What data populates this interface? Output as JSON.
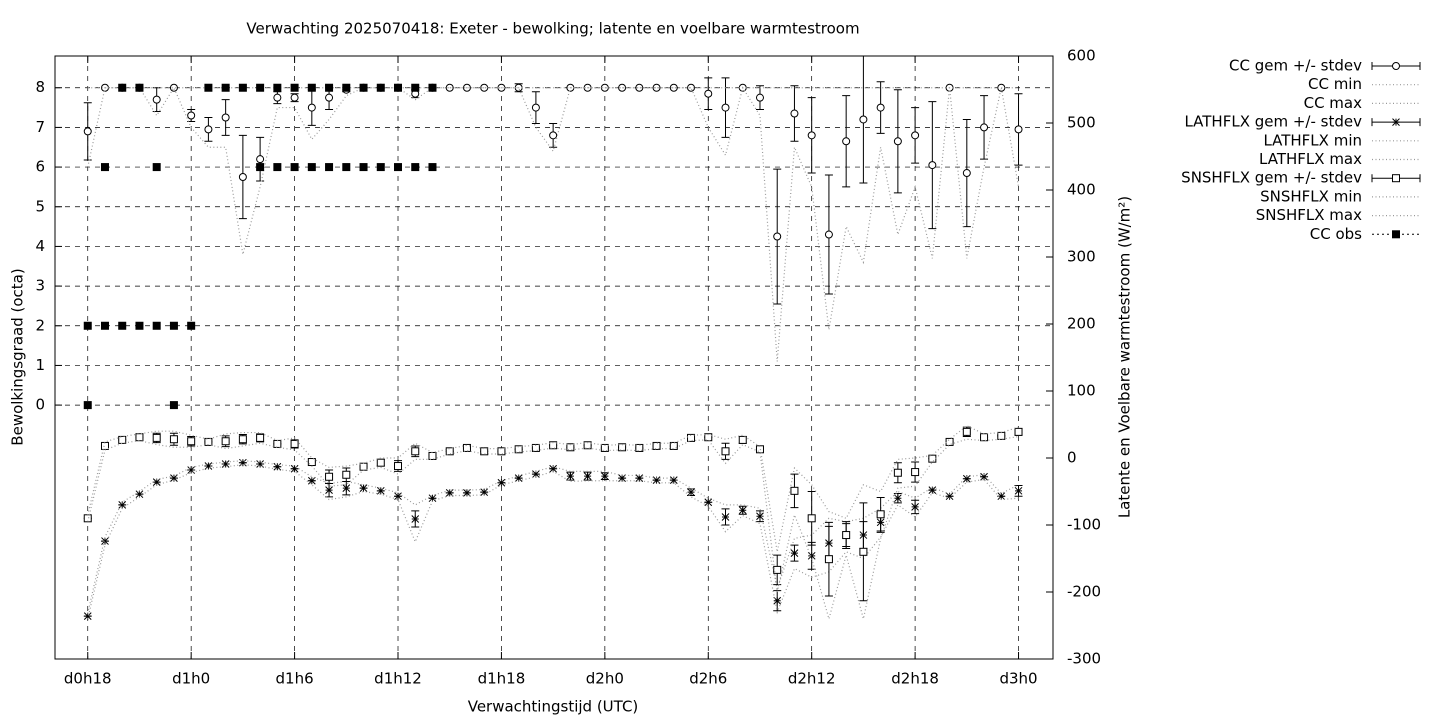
{
  "chart_data": {
    "type": "line",
    "title": "Verwachting 2025070418: Exeter - bewolking; latente en voelbare warmtestroom",
    "xlabel": "Verwachtingstijd (UTC)",
    "ylabel": "Bewolkingsgraad (octa)",
    "y2label": "Latente en Voelbare warmtestroom (W/m²)",
    "xlim": [
      16.1,
      74
    ],
    "xticks": [
      {
        "value": 18,
        "label": "d0h18"
      },
      {
        "value": 24,
        "label": "d1h0"
      },
      {
        "value": 30,
        "label": "d1h6"
      },
      {
        "value": 36,
        "label": "d1h12"
      },
      {
        "value": 42,
        "label": "d1h18"
      },
      {
        "value": 48,
        "label": "d2h0"
      },
      {
        "value": 54,
        "label": "d2h6"
      },
      {
        "value": 60,
        "label": "d2h12"
      },
      {
        "value": 66,
        "label": "d2h18"
      },
      {
        "value": 72,
        "label": "d3h0"
      }
    ],
    "ylim": [
      -6.4,
      8.8
    ],
    "yticks": [
      0,
      1,
      2,
      3,
      4,
      5,
      6,
      7,
      8
    ],
    "y2lim": [
      -300,
      600
    ],
    "y2ticks": [
      -300,
      -200,
      -100,
      0,
      100,
      200,
      300,
      400,
      500,
      600
    ],
    "grid": true,
    "legend": "outside-right-top",
    "x": [
      18,
      19,
      20,
      21,
      22,
      23,
      24,
      25,
      26,
      27,
      28,
      29,
      30,
      31,
      32,
      33,
      34,
      35,
      36,
      37,
      38,
      39,
      40,
      41,
      42,
      43,
      44,
      45,
      46,
      47,
      48,
      49,
      50,
      51,
      52,
      53,
      54,
      55,
      56,
      57,
      58,
      59,
      60,
      61,
      62,
      63,
      64,
      65,
      66,
      67,
      68,
      69,
      70,
      71,
      72
    ],
    "series": [
      {
        "name": "CC gem +/- stdev",
        "color": "#000000",
        "axis": "y",
        "marker": "circle",
        "values": [
          6.9,
          8,
          8,
          8,
          7.7,
          8,
          7.3,
          6.95,
          7.25,
          5.75,
          6.2,
          7.75,
          7.75,
          7.5,
          7.75,
          7.95,
          8,
          8,
          8,
          7.85,
          8,
          8,
          8,
          8,
          8,
          8,
          7.5,
          6.8,
          8,
          8,
          8,
          8,
          8,
          8,
          8,
          8,
          7.85,
          7.5,
          8,
          7.75,
          4.25,
          7.35,
          6.8,
          4.3,
          6.65,
          7.2,
          7.5,
          6.65,
          6.8,
          6.05,
          8,
          5.85,
          7.0,
          8,
          6.95
        ],
        "errors": [
          0.72,
          0,
          0,
          0,
          0.3,
          0,
          0.15,
          0.3,
          0.45,
          1.05,
          0.55,
          0.15,
          0.1,
          0.45,
          0.3,
          0.05,
          0,
          0,
          0,
          0.1,
          0,
          0,
          0,
          0,
          0,
          0.1,
          0.4,
          0.3,
          0,
          0,
          0,
          0,
          0,
          0,
          0,
          0,
          0.4,
          0.75,
          0,
          0.3,
          1.7,
          0.7,
          0.95,
          1.5,
          1.15,
          1.6,
          0.65,
          1.3,
          0.7,
          1.6,
          0,
          1.35,
          0.8,
          0,
          0.9
        ]
      },
      {
        "name": "CC min",
        "color": "#999999",
        "axis": "y",
        "marker": "none",
        "values": [
          6,
          8,
          8,
          8,
          7.3,
          8,
          7,
          6.5,
          6.5,
          3.8,
          5.5,
          7.5,
          7.5,
          6.7,
          7.2,
          7.8,
          8,
          8,
          8,
          7.7,
          8,
          8,
          8,
          8,
          8,
          8,
          7,
          6.4,
          8,
          8,
          8,
          8,
          8,
          8,
          8,
          8,
          7,
          6.3,
          8,
          7.3,
          1.1,
          6.5,
          5.5,
          1.9,
          4.5,
          3.6,
          6.5,
          4.3,
          5.5,
          3.7,
          8,
          3.7,
          6,
          8,
          5.5
        ]
      },
      {
        "name": "CC max",
        "color": "#999999",
        "axis": "y",
        "marker": "none",
        "values": [
          8,
          8,
          8,
          8,
          8,
          8,
          8,
          8,
          8,
          8,
          8,
          8,
          8,
          8,
          8,
          8,
          8,
          8,
          8,
          8,
          8,
          8,
          8,
          8,
          8,
          8,
          8,
          8,
          8,
          8,
          8,
          8,
          8,
          8,
          8,
          8,
          8,
          8,
          8,
          8,
          8,
          8,
          8,
          8,
          8,
          8,
          8,
          8,
          8,
          8,
          8,
          8,
          8,
          8,
          8
        ]
      },
      {
        "name": "LATHFLX gem +/- stdev",
        "color": "#000000",
        "axis": "y2",
        "marker": "star",
        "values": [
          -236,
          -124,
          -70,
          -54,
          -36,
          -30,
          -18,
          -12,
          -9,
          -7,
          -9,
          -13,
          -16,
          -34,
          -48,
          -45,
          -45,
          -49,
          -57,
          -91,
          -60,
          -52,
          -52,
          -51,
          -37,
          -30,
          -24,
          -16,
          -27,
          -27,
          -27,
          -30,
          -30,
          -33,
          -33,
          -51,
          -66,
          -88,
          -78,
          -87,
          -213,
          -142,
          -146,
          -127,
          -115,
          -115,
          -96,
          -60,
          -73,
          -48,
          -57,
          -31,
          -28,
          -57,
          -49
        ],
        "errors": [
          0,
          0,
          0,
          0,
          0,
          0,
          0,
          0,
          0,
          0,
          0,
          0,
          0,
          0,
          10,
          10,
          0,
          0,
          0,
          12,
          0,
          0,
          0,
          0,
          0,
          0,
          0,
          0,
          6,
          6,
          5,
          0,
          0,
          0,
          0,
          5,
          0,
          12,
          6,
          8,
          15,
          12,
          20,
          25,
          17,
          20,
          15,
          7,
          10,
          0,
          0,
          0,
          0,
          0,
          8
        ]
      },
      {
        "name": "LATHFLX min",
        "color": "#999999",
        "axis": "y2",
        "marker": "none",
        "values": [
          -240,
          -130,
          -75,
          -58,
          -40,
          -33,
          -22,
          -15,
          -13,
          -10,
          -12,
          -17,
          -20,
          -40,
          -62,
          -58,
          -50,
          -54,
          -62,
          -125,
          -64,
          -56,
          -56,
          -55,
          -40,
          -34,
          -28,
          -20,
          -35,
          -34,
          -34,
          -34,
          -34,
          -37,
          -37,
          -58,
          -72,
          -110,
          -86,
          -98,
          -230,
          -165,
          -178,
          -170,
          -140,
          -150,
          -118,
          -70,
          -88,
          -52,
          -60,
          -36,
          -32,
          -62,
          -60
        ]
      },
      {
        "name": "LATHFLX max",
        "color": "#999999",
        "axis": "y2",
        "marker": "none",
        "values": [
          -232,
          -118,
          -66,
          -50,
          -32,
          -27,
          -14,
          -9,
          -6,
          -4,
          -6,
          -10,
          -12,
          -28,
          -38,
          -35,
          -40,
          -45,
          -52,
          -70,
          -56,
          -48,
          -48,
          -47,
          -34,
          -27,
          -20,
          -13,
          -20,
          -20,
          -20,
          -26,
          -26,
          -30,
          -30,
          -45,
          -60,
          -70,
          -70,
          -75,
          -195,
          -120,
          -115,
          -90,
          -95,
          -90,
          -75,
          -50,
          -60,
          -44,
          -54,
          -28,
          -25,
          -53,
          -40
        ]
      },
      {
        "name": "SNSHFLX gem +/- stdev",
        "color": "#000000",
        "axis": "y2",
        "marker": "square",
        "values": [
          -90,
          18,
          27,
          31,
          30,
          28,
          25,
          24,
          25,
          28,
          30,
          21,
          21,
          -6,
          -28,
          -25,
          -13,
          -7,
          -12,
          10,
          3,
          10,
          15,
          10,
          10,
          13,
          15,
          19,
          16,
          19,
          15,
          16,
          15,
          18,
          18,
          30,
          31,
          10,
          27,
          13,
          -167,
          -49,
          -90,
          -151,
          -115,
          -140,
          -84,
          -22,
          -21,
          -1,
          24,
          39,
          31,
          33,
          39
        ],
        "errors": [
          0,
          0,
          0,
          0,
          7,
          9,
          7,
          0,
          8,
          7,
          6,
          0,
          6,
          0,
          10,
          10,
          0,
          5,
          8,
          8,
          0,
          0,
          0,
          0,
          0,
          0,
          0,
          0,
          0,
          0,
          0,
          0,
          0,
          0,
          0,
          0,
          0,
          12,
          5,
          0,
          22,
          25,
          40,
          55,
          20,
          73,
          25,
          15,
          15,
          0,
          0,
          7,
          0,
          0,
          5
        ]
      },
      {
        "name": "SNSHFLX min",
        "color": "#999999",
        "axis": "y2",
        "marker": "none",
        "values": [
          -95,
          12,
          22,
          26,
          20,
          16,
          16,
          20,
          14,
          18,
          22,
          16,
          12,
          -12,
          -42,
          -40,
          -18,
          -14,
          -24,
          -2,
          -2,
          6,
          11,
          6,
          6,
          9,
          11,
          15,
          12,
          15,
          11,
          12,
          11,
          14,
          14,
          26,
          27,
          -8,
          20,
          9,
          -200,
          -85,
          -150,
          -240,
          -145,
          -240,
          -120,
          -45,
          -42,
          -6,
          20,
          28,
          26,
          28,
          32
        ]
      },
      {
        "name": "SNSHFLX max",
        "color": "#999999",
        "axis": "y2",
        "marker": "none",
        "values": [
          -85,
          24,
          32,
          36,
          40,
          40,
          34,
          28,
          36,
          38,
          38,
          26,
          30,
          0,
          -14,
          -12,
          -8,
          0,
          0,
          22,
          8,
          14,
          19,
          14,
          14,
          17,
          19,
          23,
          20,
          23,
          19,
          20,
          19,
          22,
          22,
          34,
          35,
          28,
          34,
          17,
          -140,
          -15,
          -40,
          -80,
          -90,
          -40,
          -50,
          -2,
          0,
          4,
          28,
          48,
          36,
          38,
          46
        ]
      },
      {
        "name": "CC obs",
        "color": "#000000",
        "axis": "y",
        "marker": "filled-square",
        "x": [
          18,
          18,
          19,
          19,
          20,
          20,
          21,
          21,
          22,
          22,
          23,
          23,
          24,
          25,
          26,
          27,
          28,
          28,
          29,
          29,
          30,
          30,
          31,
          31,
          32,
          32,
          33,
          33,
          34,
          34,
          35,
          35,
          36,
          36,
          37,
          37,
          38,
          38
        ],
        "values": [
          2,
          0,
          6,
          2,
          8,
          2,
          8,
          2,
          6,
          2,
          2,
          0,
          2,
          8,
          8,
          8,
          8,
          6,
          8,
          6,
          8,
          6,
          8,
          6,
          8,
          6,
          8,
          6,
          8,
          6,
          8,
          6,
          8,
          6,
          8,
          6,
          8,
          6
        ]
      }
    ]
  }
}
